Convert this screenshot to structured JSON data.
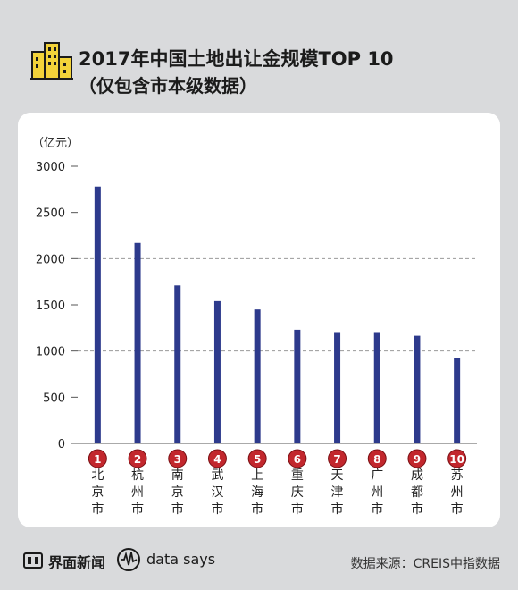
{
  "header": {
    "title": "2017年中国土地出让金规模TOP 10",
    "subtitle": "（仅包含市本级数据）",
    "icon": "building-icon"
  },
  "chart_data": {
    "type": "bar",
    "title": "2017年中国土地出让金规模TOP 10",
    "ylabel": "（亿元）",
    "ylim": [
      0,
      3000
    ],
    "yticks": [
      0,
      500,
      1000,
      1500,
      2000,
      2500,
      3000
    ],
    "dashed_gridlines": [
      1000,
      2000
    ],
    "ranks": [
      "1",
      "2",
      "3",
      "4",
      "5",
      "6",
      "7",
      "8",
      "9",
      "10"
    ],
    "categories": [
      "北京市",
      "杭州市",
      "南京市",
      "武汉市",
      "上海市",
      "重庆市",
      "天津市",
      "广州市",
      "成都市",
      "苏州市"
    ],
    "values": [
      2780,
      2170,
      1710,
      1540,
      1450,
      1230,
      1205,
      1205,
      1165,
      920
    ],
    "bar_color": "#2d3a8c",
    "badge_color": "#c2272d"
  },
  "footer": {
    "brand1": "界面新闻",
    "brand2": "data says",
    "source": "数据来源：CREIS中指数据"
  }
}
